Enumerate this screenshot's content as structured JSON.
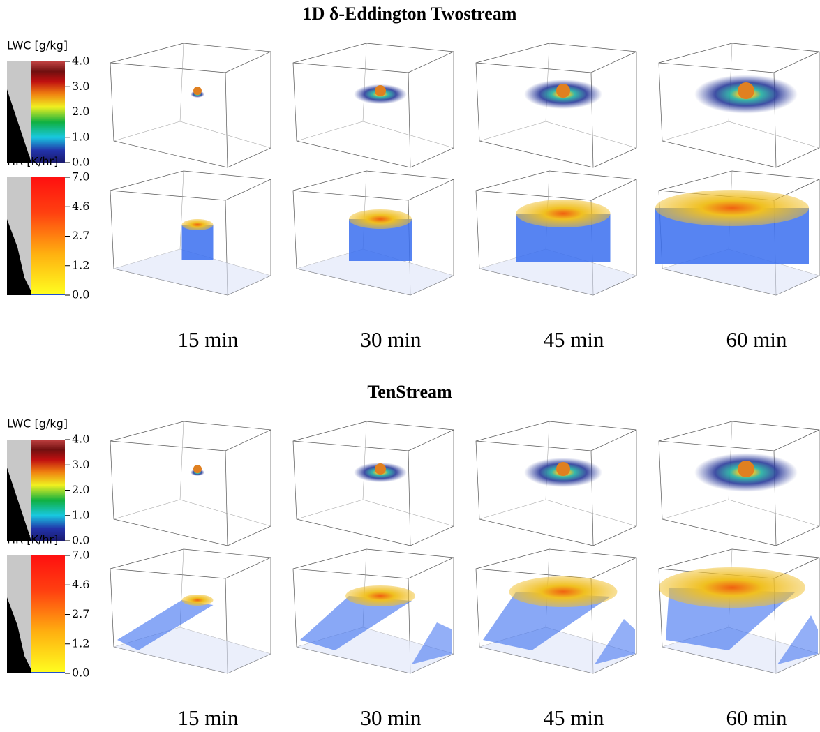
{
  "panels": [
    {
      "title": "1D δ-Eddington Twostream",
      "lwc_legend": {
        "label": "LWC [g/kg]",
        "ticks": [
          "4.0",
          "3.0",
          "2.0",
          "1.0",
          "0.0"
        ]
      },
      "hr_legend": {
        "label": "HR [K/hr]",
        "ticks": [
          "7.0",
          "4.6",
          "2.7",
          "1.2",
          "0.0"
        ]
      },
      "times": [
        "15 min",
        "30 min",
        "45 min",
        "60 min"
      ]
    },
    {
      "title": "TenStream",
      "lwc_legend": {
        "label": "LWC [g/kg]",
        "ticks": [
          "4.0",
          "3.0",
          "2.0",
          "1.0",
          "0.0"
        ]
      },
      "hr_legend": {
        "label": "HR [K/hr]",
        "ticks": [
          "7.0",
          "4.6",
          "2.7",
          "1.2",
          "0.0"
        ]
      },
      "times": [
        "15 min",
        "30 min",
        "45 min",
        "60 min"
      ]
    }
  ]
}
